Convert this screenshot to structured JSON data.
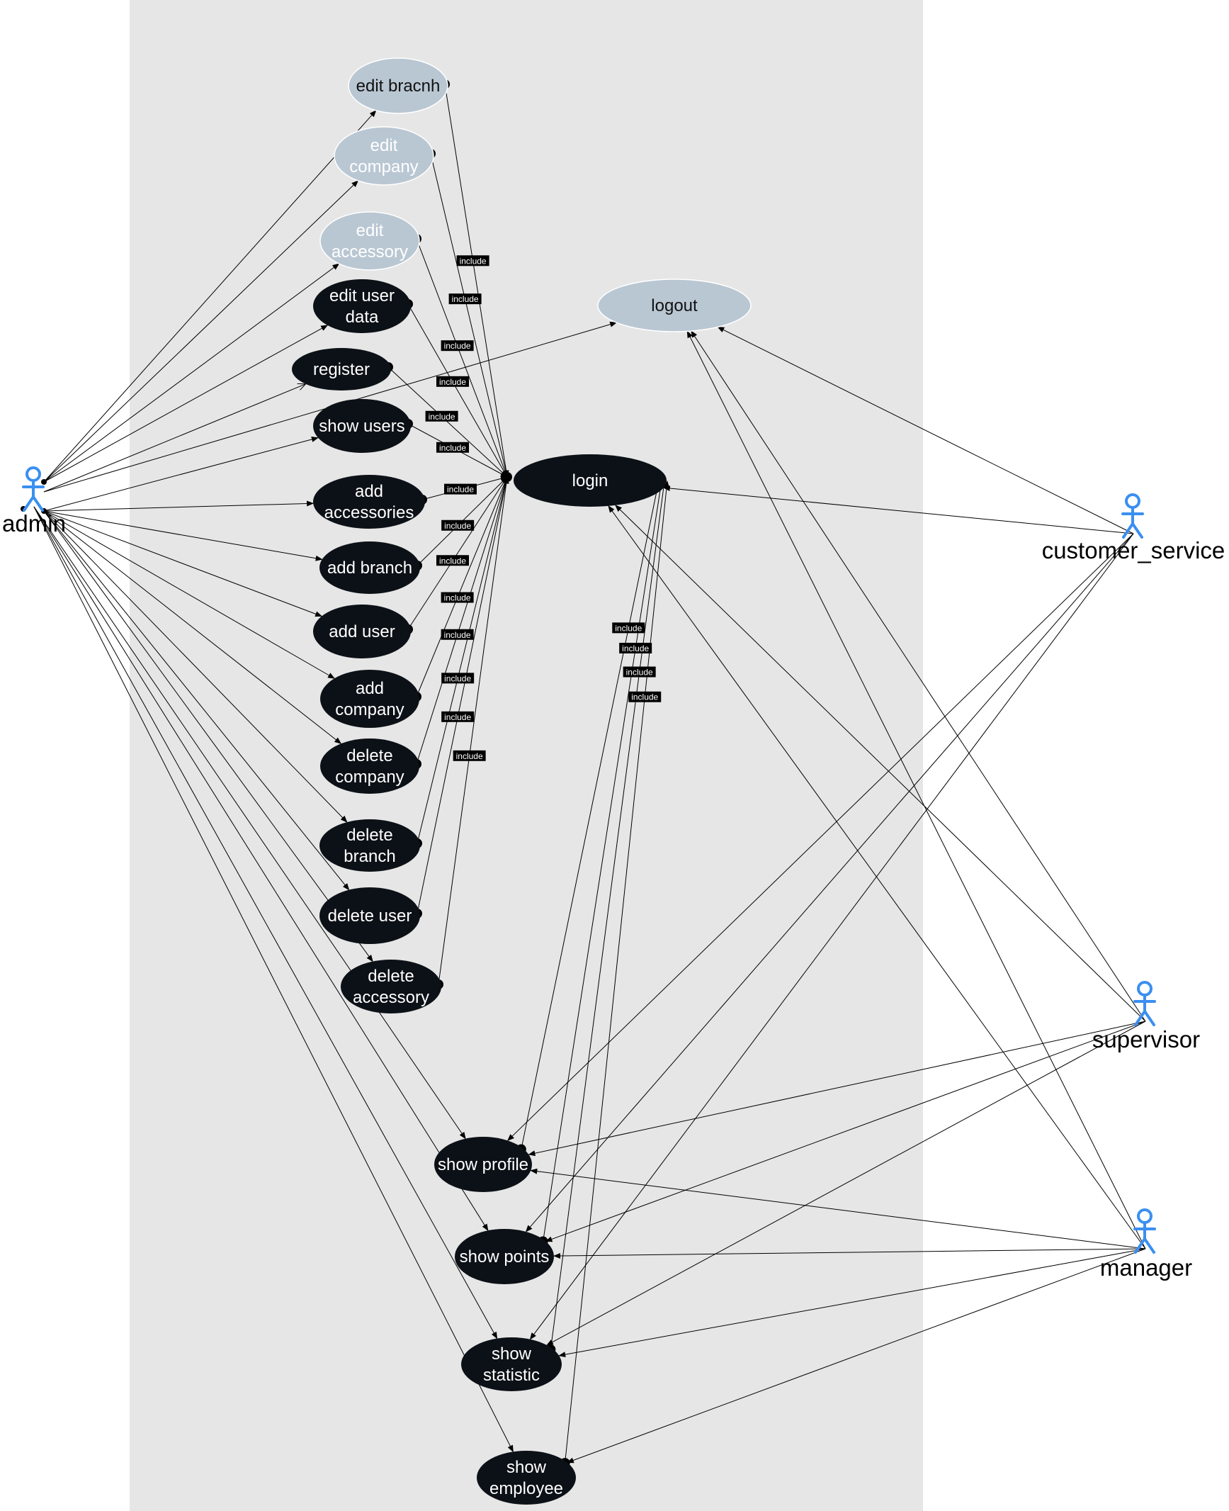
{
  "colors": {
    "boundary": "#e6e6e6",
    "use_case_dark": "#0c1117",
    "use_case_light": "#b9c7d3",
    "text_on_dark": "#ffffff",
    "text_on_light_dark": "#111111",
    "text_on_light_white": "#ffffff",
    "actor": "#3a8ff0",
    "line": "#000000",
    "include_bg": "#000000",
    "include_text": "#ffffff"
  },
  "include_label": "include",
  "actors": [
    {
      "id": "admin",
      "label": "admin"
    },
    {
      "id": "customer_service",
      "label": "customer_service"
    },
    {
      "id": "supervisor",
      "label": "supervisor"
    },
    {
      "id": "manager",
      "label": "manager"
    }
  ],
  "use_cases": [
    {
      "id": "edit_branch",
      "lines": [
        "edit bracnh"
      ],
      "style": "light"
    },
    {
      "id": "edit_company",
      "lines": [
        "edit",
        "company"
      ],
      "style": "light-white"
    },
    {
      "id": "edit_accessory",
      "lines": [
        "edit",
        "accessory"
      ],
      "style": "light-white"
    },
    {
      "id": "edit_user_data",
      "lines": [
        "edit user",
        "data"
      ],
      "style": "dark"
    },
    {
      "id": "register",
      "lines": [
        "register"
      ],
      "style": "dark"
    },
    {
      "id": "show_users",
      "lines": [
        "show users"
      ],
      "style": "dark"
    },
    {
      "id": "add_accessories",
      "lines": [
        "add",
        "accessories"
      ],
      "style": "dark"
    },
    {
      "id": "add_branch",
      "lines": [
        "add branch"
      ],
      "style": "dark"
    },
    {
      "id": "add_user",
      "lines": [
        "add user"
      ],
      "style": "dark"
    },
    {
      "id": "add_company",
      "lines": [
        "add",
        "company"
      ],
      "style": "dark"
    },
    {
      "id": "delete_company",
      "lines": [
        "delete",
        "company"
      ],
      "style": "dark"
    },
    {
      "id": "delete_branch",
      "lines": [
        "delete",
        "branch"
      ],
      "style": "dark"
    },
    {
      "id": "delete_user",
      "lines": [
        "delete user"
      ],
      "style": "dark"
    },
    {
      "id": "delete_accessory",
      "lines": [
        "delete",
        "accessory"
      ],
      "style": "dark"
    },
    {
      "id": "logout",
      "lines": [
        "logout"
      ],
      "style": "light"
    },
    {
      "id": "login",
      "lines": [
        "login"
      ],
      "style": "dark"
    },
    {
      "id": "show_profile",
      "lines": [
        "show profile"
      ],
      "style": "dark"
    },
    {
      "id": "show_points",
      "lines": [
        "show points"
      ],
      "style": "dark"
    },
    {
      "id": "show_statistic",
      "lines": [
        "show",
        "statistic"
      ],
      "style": "dark"
    },
    {
      "id": "show_employee",
      "lines": [
        "show",
        "employee"
      ],
      "style": "dark"
    }
  ],
  "associations": [
    {
      "from": "admin",
      "to": "edit_branch"
    },
    {
      "from": "admin",
      "to": "edit_company"
    },
    {
      "from": "admin",
      "to": "edit_accessory"
    },
    {
      "from": "admin",
      "to": "edit_user_data"
    },
    {
      "from": "admin",
      "to": "register"
    },
    {
      "from": "admin",
      "to": "show_users"
    },
    {
      "from": "admin",
      "to": "add_accessories"
    },
    {
      "from": "admin",
      "to": "add_branch"
    },
    {
      "from": "admin",
      "to": "add_user"
    },
    {
      "from": "admin",
      "to": "add_company"
    },
    {
      "from": "admin",
      "to": "delete_company"
    },
    {
      "from": "admin",
      "to": "delete_branch"
    },
    {
      "from": "admin",
      "to": "delete_user"
    },
    {
      "from": "admin",
      "to": "delete_accessory"
    },
    {
      "from": "admin",
      "to": "logout"
    },
    {
      "from": "admin",
      "to": "show_profile"
    },
    {
      "from": "admin",
      "to": "show_points"
    },
    {
      "from": "admin",
      "to": "show_statistic"
    },
    {
      "from": "admin",
      "to": "show_employee"
    },
    {
      "from": "customer_service",
      "to": "logout"
    },
    {
      "from": "customer_service",
      "to": "login"
    },
    {
      "from": "customer_service",
      "to": "show_profile"
    },
    {
      "from": "customer_service",
      "to": "show_points"
    },
    {
      "from": "customer_service",
      "to": "show_statistic"
    },
    {
      "from": "supervisor",
      "to": "logout"
    },
    {
      "from": "supervisor",
      "to": "login"
    },
    {
      "from": "supervisor",
      "to": "show_profile"
    },
    {
      "from": "supervisor",
      "to": "show_points"
    },
    {
      "from": "supervisor",
      "to": "show_statistic"
    },
    {
      "from": "manager",
      "to": "logout"
    },
    {
      "from": "manager",
      "to": "login"
    },
    {
      "from": "manager",
      "to": "show_profile"
    },
    {
      "from": "manager",
      "to": "show_points"
    },
    {
      "from": "manager",
      "to": "show_statistic"
    },
    {
      "from": "manager",
      "to": "show_employee"
    }
  ],
  "includes": [
    {
      "from": "edit_branch",
      "to": "login"
    },
    {
      "from": "edit_company",
      "to": "login"
    },
    {
      "from": "edit_accessory",
      "to": "login"
    },
    {
      "from": "edit_user_data",
      "to": "login"
    },
    {
      "from": "register",
      "to": "login"
    },
    {
      "from": "show_users",
      "to": "login"
    },
    {
      "from": "add_accessories",
      "to": "login"
    },
    {
      "from": "add_branch",
      "to": "login"
    },
    {
      "from": "add_user",
      "to": "login"
    },
    {
      "from": "add_company",
      "to": "login"
    },
    {
      "from": "delete_company",
      "to": "login"
    },
    {
      "from": "delete_branch",
      "to": "login"
    },
    {
      "from": "delete_user",
      "to": "login"
    },
    {
      "from": "delete_accessory",
      "to": "login"
    },
    {
      "from": "show_profile",
      "to": "login"
    },
    {
      "from": "show_points",
      "to": "login"
    },
    {
      "from": "show_statistic",
      "to": "login"
    },
    {
      "from": "show_employee",
      "to": "login"
    }
  ]
}
